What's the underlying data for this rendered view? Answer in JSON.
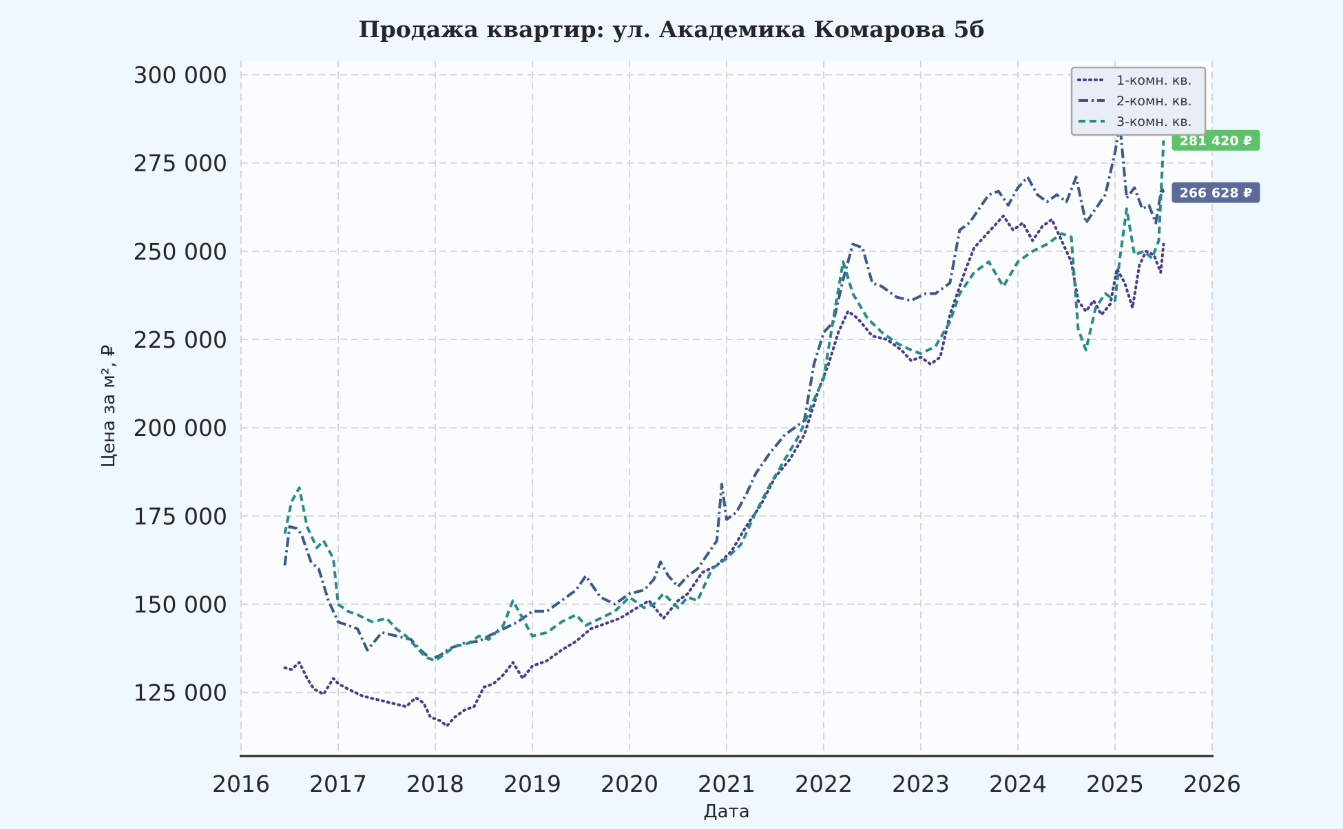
{
  "chart_data": {
    "type": "line",
    "title": "Продажа квартир: ул. Академика Комарова 5б",
    "xlabel": "Дата",
    "ylabel": "Цена за м², ₽",
    "xlim": [
      2016.0,
      2026.0
    ],
    "ylim": [
      107000,
      304000
    ],
    "x_ticks": [
      2016,
      2017,
      2018,
      2019,
      2020,
      2021,
      2022,
      2023,
      2024,
      2025,
      2026
    ],
    "x_tick_labels": [
      "2016",
      "2017",
      "2018",
      "2019",
      "2020",
      "2021",
      "2022",
      "2023",
      "2024",
      "2025",
      "2026"
    ],
    "y_ticks": [
      125000,
      150000,
      175000,
      200000,
      225000,
      250000,
      275000,
      300000
    ],
    "y_tick_labels": [
      "125 000",
      "150 000",
      "175 000",
      "200 000",
      "225 000",
      "250 000",
      "275 000",
      "300 000"
    ],
    "grid": true,
    "legend_position": "top-right",
    "series": [
      {
        "name": "1-комн. кв.",
        "color": "#483d8b",
        "dash": "dotted",
        "x": [
          2016.45,
          2016.52,
          2016.6,
          2016.68,
          2016.75,
          2016.85,
          2016.95,
          2017.0,
          2017.1,
          2017.25,
          2017.4,
          2017.55,
          2017.7,
          2017.8,
          2017.88,
          2017.95,
          2018.05,
          2018.12,
          2018.2,
          2018.3,
          2018.4,
          2018.5,
          2018.6,
          2018.7,
          2018.8,
          2018.9,
          2019.0,
          2019.15,
          2019.3,
          2019.45,
          2019.6,
          2019.75,
          2019.9,
          2020.05,
          2020.2,
          2020.35,
          2020.5,
          2020.6,
          2020.75,
          2020.9,
          2021.05,
          2021.2,
          2021.35,
          2021.5,
          2021.65,
          2021.8,
          2021.95,
          2022.05,
          2022.15,
          2022.25,
          2022.35,
          2022.5,
          2022.65,
          2022.8,
          2022.9,
          2023.0,
          2023.1,
          2023.2,
          2023.3,
          2023.45,
          2023.55,
          2023.65,
          2023.75,
          2023.85,
          2023.95,
          2024.05,
          2024.15,
          2024.25,
          2024.35,
          2024.45,
          2024.55,
          2024.62,
          2024.7,
          2024.78,
          2024.86,
          2024.95,
          2025.02,
          2025.1,
          2025.18,
          2025.25,
          2025.32,
          2025.4,
          2025.47,
          2025.5
        ],
        "values": [
          132000,
          131500,
          133500,
          129000,
          126000,
          124500,
          129000,
          127500,
          126000,
          124000,
          123000,
          122000,
          121000,
          123500,
          122000,
          118000,
          117000,
          115500,
          118000,
          120000,
          121000,
          126500,
          127500,
          130000,
          133500,
          129000,
          132500,
          134000,
          137000,
          139500,
          143000,
          144500,
          146000,
          148500,
          151000,
          146000,
          151000,
          153000,
          159000,
          161000,
          165000,
          172000,
          178000,
          186000,
          191000,
          198000,
          211000,
          218000,
          227000,
          233000,
          231000,
          226000,
          225000,
          222000,
          219000,
          220000,
          218000,
          220000,
          232000,
          244000,
          251000,
          254000,
          257000,
          260000,
          256000,
          258000,
          253000,
          257000,
          259000,
          253000,
          247000,
          236000,
          233000,
          236000,
          232000,
          235000,
          245000,
          241000,
          234000,
          246000,
          250000,
          249000,
          244000,
          252000
        ]
      },
      {
        "name": "2-комн. кв.",
        "color": "#3a5a8c",
        "dash": "dashdot",
        "x": [
          2016.45,
          2016.5,
          2016.57,
          2016.62,
          2016.72,
          2016.8,
          2016.9,
          2017.0,
          2017.1,
          2017.2,
          2017.3,
          2017.45,
          2017.6,
          2017.75,
          2017.85,
          2017.95,
          2018.05,
          2018.15,
          2018.3,
          2018.45,
          2018.55,
          2018.7,
          2018.85,
          2019.0,
          2019.15,
          2019.3,
          2019.45,
          2019.55,
          2019.7,
          2019.85,
          2020.0,
          2020.15,
          2020.25,
          2020.32,
          2020.4,
          2020.5,
          2020.6,
          2020.7,
          2020.8,
          2020.9,
          2020.95,
          2021.0,
          2021.1,
          2021.2,
          2021.3,
          2021.45,
          2021.6,
          2021.7,
          2021.8,
          2021.9,
          2022.0,
          2022.1,
          2022.2,
          2022.3,
          2022.4,
          2022.5,
          2022.6,
          2022.75,
          2022.9,
          2023.05,
          2023.15,
          2023.3,
          2023.4,
          2023.5,
          2023.6,
          2023.7,
          2023.8,
          2023.9,
          2024.0,
          2024.1,
          2024.2,
          2024.3,
          2024.4,
          2024.5,
          2024.6,
          2024.7,
          2024.8,
          2024.9,
          2025.0,
          2025.05,
          2025.12,
          2025.2,
          2025.28,
          2025.35,
          2025.42,
          2025.48,
          2025.5
        ],
        "values": [
          161000,
          172000,
          171500,
          170000,
          162000,
          160000,
          151000,
          145000,
          144000,
          143000,
          137000,
          142000,
          141000,
          140000,
          137000,
          134500,
          135500,
          137500,
          139000,
          139500,
          141000,
          143000,
          145000,
          148000,
          148000,
          151000,
          154000,
          158000,
          152000,
          150000,
          153000,
          154000,
          157000,
          162000,
          158000,
          155000,
          158000,
          160000,
          164000,
          168000,
          184000,
          174000,
          176000,
          181000,
          187000,
          193000,
          198000,
          200000,
          202000,
          218000,
          227000,
          230000,
          242000,
          252000,
          251000,
          241000,
          240000,
          237000,
          236000,
          238000,
          238000,
          241000,
          256000,
          258000,
          262000,
          266000,
          267000,
          263000,
          268000,
          271000,
          266000,
          264000,
          266000,
          264000,
          271000,
          258000,
          262000,
          266000,
          278000,
          286000,
          265000,
          268000,
          262000,
          263000,
          258000,
          268000,
          266628
        ]
      },
      {
        "name": "3-комн. кв.",
        "color": "#2a8a8a",
        "dash": "dashed",
        "x": [
          2016.45,
          2016.52,
          2016.6,
          2016.68,
          2016.78,
          2016.85,
          2016.95,
          2017.0,
          2017.1,
          2017.2,
          2017.35,
          2017.5,
          2017.6,
          2017.7,
          2017.8,
          2017.9,
          2018.0,
          2018.1,
          2018.2,
          2018.35,
          2018.45,
          2018.55,
          2018.7,
          2018.8,
          2018.9,
          2019.0,
          2019.15,
          2019.3,
          2019.45,
          2019.55,
          2019.7,
          2019.85,
          2020.0,
          2020.15,
          2020.25,
          2020.35,
          2020.5,
          2020.6,
          2020.7,
          2020.85,
          2021.0,
          2021.15,
          2021.3,
          2021.45,
          2021.6,
          2021.75,
          2021.9,
          2022.0,
          2022.1,
          2022.2,
          2022.3,
          2022.45,
          2022.6,
          2022.75,
          2022.9,
          2023.0,
          2023.15,
          2023.3,
          2023.4,
          2023.55,
          2023.7,
          2023.85,
          2024.0,
          2024.15,
          2024.3,
          2024.45,
          2024.55,
          2024.62,
          2024.7,
          2024.8,
          2024.9,
          2025.0,
          2025.05,
          2025.12,
          2025.2,
          2025.3,
          2025.38,
          2025.45,
          2025.5
        ],
        "values": [
          170000,
          179000,
          183000,
          172000,
          166000,
          168000,
          163000,
          150000,
          148000,
          147000,
          145000,
          146000,
          143000,
          141000,
          138000,
          135000,
          134000,
          136000,
          138000,
          139000,
          141000,
          140000,
          144000,
          151000,
          146000,
          141000,
          142000,
          145000,
          147000,
          144000,
          146000,
          148000,
          152000,
          149000,
          150000,
          153000,
          149000,
          152000,
          151000,
          160000,
          163000,
          167000,
          176000,
          184000,
          191000,
          198000,
          208000,
          214000,
          231000,
          247000,
          238000,
          231000,
          227000,
          224000,
          222000,
          221000,
          223000,
          230000,
          238000,
          244000,
          247000,
          240000,
          247000,
          250000,
          252000,
          255000,
          254000,
          228000,
          222000,
          234000,
          238000,
          236000,
          248000,
          262000,
          249000,
          250000,
          248000,
          253000,
          281420
        ]
      }
    ],
    "end_labels": [
      {
        "text": "281 420 ₽",
        "value": 281420,
        "color": "#5cc36a"
      },
      {
        "text": "266 628 ₽",
        "value": 266628,
        "color": "#5a6b9a"
      }
    ]
  }
}
